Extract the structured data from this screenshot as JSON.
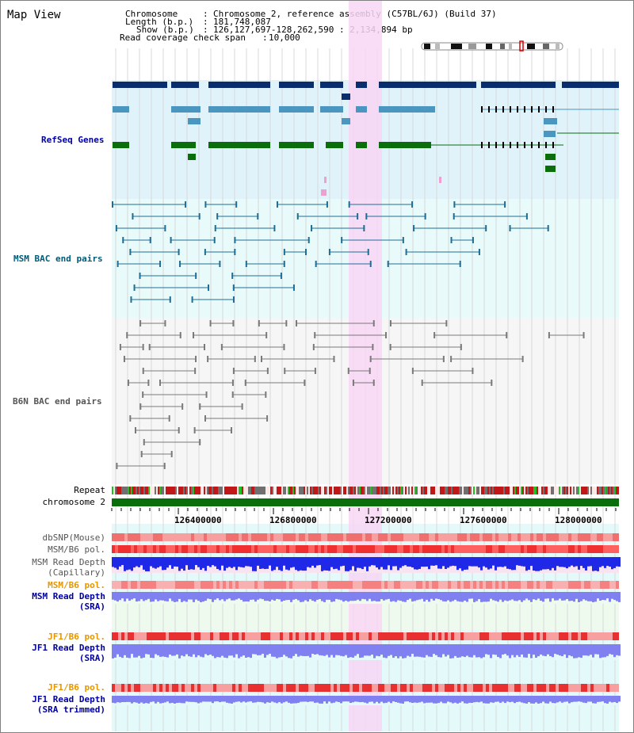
{
  "title": "Map View",
  "info": {
    "chromosome_label": "Chromosome",
    "chromosome_value": "Chromosome 2, reference assembly (C57BL/6J) (Build 37)",
    "length_label": "Length (b.p.)",
    "length_value": "181,748,087",
    "show_label": "Show (b.p.)",
    "show_value": "126,127,697-128,262,590 : 2,134,894 bp",
    "coverage_label": "Read coverage check span",
    "coverage_value": "10,000"
  },
  "tracks": {
    "refseq": "RefSeq Genes",
    "msm_bac": "MSM BAC end pairs",
    "b6n_bac": "B6N BAC end pairs",
    "repeat": "Repeat",
    "chromosome": "chromosome 2",
    "dbsnp": "dbSNP(Mouse)",
    "msm_b6_pol_1": "MSM/B6 pol.",
    "msm_depth_cap_1": "MSM Read Depth",
    "msm_depth_cap_2": "(Capillary)",
    "msm_b6_pol_2": "MSM/B6 pol.",
    "msm_depth_sra_1": "MSM Read Depth",
    "msm_depth_sra_2": "(SRA)",
    "jf1_b6_pol_1": "JF1/B6 pol.",
    "jf1_depth_sra_1": "JF1 Read Depth",
    "jf1_depth_sra_2": "(SRA)",
    "jf1_b6_pol_2": "JF1/B6 pol.",
    "jf1_depth_trim_1": "JF1 Read Depth",
    "jf1_depth_trim_2": "(SRA trimmed)"
  },
  "axis": {
    "ticks": [
      "126400000",
      "126800000",
      "127200000",
      "127600000",
      "128000000"
    ]
  },
  "colors": {
    "refseq_bg": "#e0f2fa",
    "msm_bac_bg": "#e8fafa",
    "b6n_bac_bg": "#f6f6f6",
    "highlight": "#f8d6f4",
    "gene_dark": "#0a2d6e",
    "gene_light": "#4a96c0",
    "gene_green": "#0a6e0a",
    "msm_bac": "#1e6e96",
    "b6n_bac": "#7a7a7a",
    "chromosome": "#0a6e0a",
    "depth_blue": "#1e28e6",
    "depth_sra": "#8080f0",
    "label_blue": "#0000a0",
    "label_orange": "#e69600",
    "label_teal": "#005a78"
  }
}
